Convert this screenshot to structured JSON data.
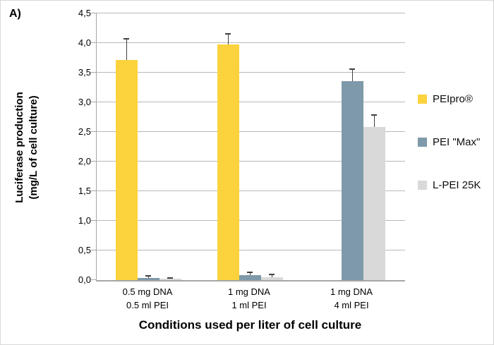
{
  "figure": {
    "panel_label": "A)",
    "background_color": "#ffffff",
    "axis_color": "#a6a6a6",
    "gridline_color": "#b9b9b9",
    "error_bar_color": "#404040",
    "text_color": "#000000"
  },
  "chart_data": {
    "type": "bar",
    "panel_label": "A)",
    "xlabel": "Conditions used per liter of cell culture",
    "ylabel_lines": [
      "Luciferase production",
      "(mg/L of cell culture)"
    ],
    "ylim": [
      0,
      4.5
    ],
    "y_tick_step": 0.5,
    "y_tick_labels": [
      "0,0",
      "0,5",
      "1,0",
      "1,5",
      "2,0",
      "2,5",
      "3,0",
      "3,5",
      "4,0",
      "4,5"
    ],
    "decimal_separator": ",",
    "grid": true,
    "legend_position": "right",
    "categories": [
      [
        "0.5 mg DNA",
        "0.5 ml PEI"
      ],
      [
        "1 mg DNA",
        "1 ml PEI"
      ],
      [
        "1 mg DNA",
        "4 ml PEI"
      ]
    ],
    "series": [
      {
        "name": "PEIpro®",
        "color": "#fcd33c",
        "values": [
          3.72,
          3.98,
          null
        ],
        "errors": [
          0.35,
          0.18,
          null
        ]
      },
      {
        "name": "PEI \"Max\"",
        "color": "#7e99a9",
        "values": [
          0.03,
          0.08,
          3.36
        ],
        "errors": [
          0.04,
          0.05,
          0.2
        ]
      },
      {
        "name": "L-PEI 25K",
        "color": "#d9d9d9",
        "values": [
          0.02,
          0.05,
          2.58
        ],
        "errors": [
          0.02,
          0.04,
          0.2
        ]
      }
    ]
  }
}
